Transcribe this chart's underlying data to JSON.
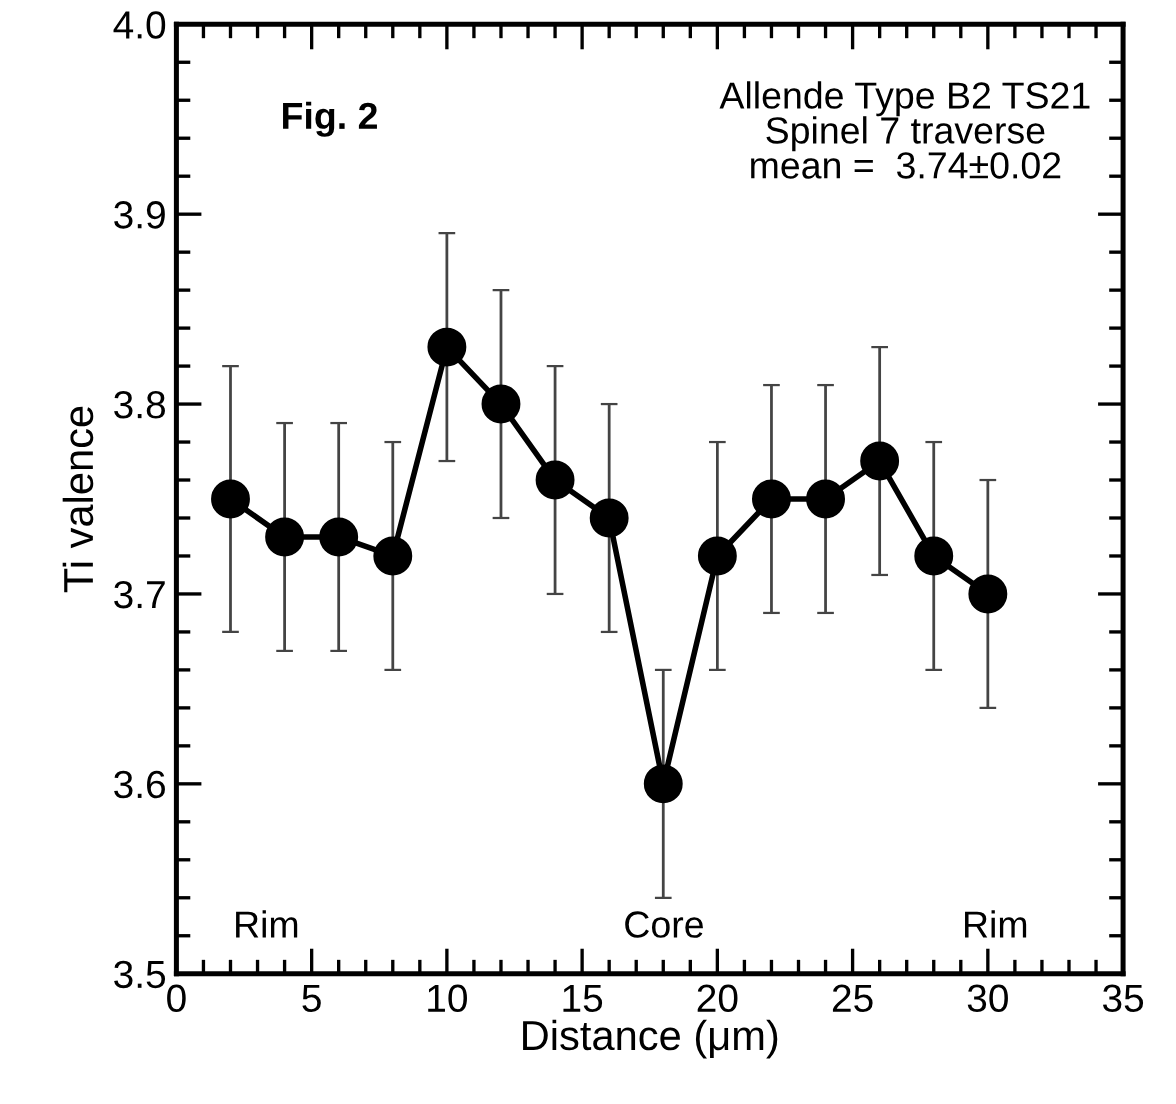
{
  "chart_data": {
    "type": "line",
    "xlabel": "Distance (μm)",
    "ylabel": "Ti valence",
    "x": [
      2,
      4,
      6,
      8,
      10,
      12,
      14,
      16,
      18,
      20,
      22,
      24,
      26,
      28,
      30
    ],
    "series": [
      {
        "color": "#000000",
        "values": [
          3.75,
          3.73,
          3.73,
          3.72,
          3.83,
          3.8,
          3.76,
          3.74,
          3.6,
          3.72,
          3.75,
          3.75,
          3.77,
          3.72,
          3.7
        ],
        "errors": [
          0.07,
          0.06,
          0.06,
          0.06,
          0.06,
          0.06,
          0.06,
          0.06,
          0.06,
          0.06,
          0.06,
          0.06,
          0.06,
          0.06,
          0.06
        ]
      }
    ],
    "xlim": [
      0,
      35
    ],
    "xticks": [
      0,
      5,
      10,
      15,
      20,
      25,
      30,
      35
    ],
    "ylim": [
      3.5,
      4.0
    ],
    "yticks": [
      3.5,
      3.6,
      3.7,
      3.8,
      3.9,
      {
        "value": 4.0,
        "label": "4.0"
      }
    ],
    "marker": "circle",
    "line_style": "solid",
    "grid": false,
    "annotations": [
      "Fig. 2",
      "Allende Type B2 TS21\nSpinel 7 traverse\nmean =  3.74±0.02",
      "Rim",
      "Core",
      "Rim"
    ]
  }
}
